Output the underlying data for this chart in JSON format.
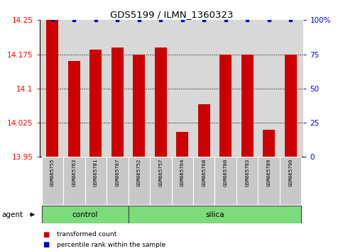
{
  "title": "GDS5199 / ILMN_1360323",
  "samples": [
    "GSM665755",
    "GSM665763",
    "GSM665781",
    "GSM665787",
    "GSM665752",
    "GSM665757",
    "GSM665764",
    "GSM665768",
    "GSM665780",
    "GSM665783",
    "GSM665789",
    "GSM665790"
  ],
  "transformed_count": [
    14.25,
    14.16,
    14.185,
    14.19,
    14.175,
    14.19,
    14.005,
    14.065,
    14.175,
    14.175,
    14.01,
    14.175
  ],
  "percentile_rank": [
    100,
    100,
    100,
    100,
    100,
    100,
    100,
    100,
    100,
    100,
    100,
    100
  ],
  "ylim_left": [
    13.95,
    14.25
  ],
  "ylim_right": [
    0,
    100
  ],
  "yticks_left": [
    13.95,
    14.025,
    14.1,
    14.175,
    14.25
  ],
  "yticks_left_labels": [
    "13.95",
    "14.025",
    "14.1",
    "14.175",
    "14.25"
  ],
  "yticks_right": [
    0,
    25,
    50,
    75,
    100
  ],
  "yticks_right_labels": [
    "0",
    "25",
    "50",
    "75",
    "100%"
  ],
  "bar_color": "#cc0000",
  "dot_color": "#0000cc",
  "background_plot": "#d8d8d8",
  "control_color": "#7cdc7c",
  "silica_color": "#7cdc7c",
  "agent_label": "agent",
  "control_label": "control",
  "silica_label": "silica",
  "legend_transformed": "transformed count",
  "legend_percentile": "percentile rank within the sample",
  "bar_width": 0.55,
  "ctrl_count": 4,
  "sil_count": 8
}
